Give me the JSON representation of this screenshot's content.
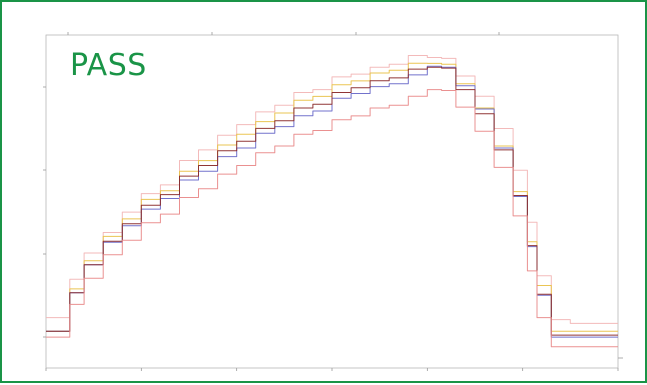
{
  "status": {
    "label": "PASS",
    "color": "#1a9447"
  },
  "chart_data": {
    "type": "line",
    "title": "",
    "xlabel": "",
    "ylabel": "",
    "xlim": [
      0,
      600
    ],
    "ylim": [
      0,
      300
    ],
    "grid": false,
    "x": [
      0,
      20,
      30,
      50,
      70,
      90,
      110,
      130,
      150,
      170,
      190,
      210,
      230,
      250,
      270,
      290,
      310,
      330,
      350,
      370,
      390,
      410,
      420,
      440,
      460,
      480,
      500,
      510,
      520,
      540,
      560,
      580,
      600
    ],
    "series": [
      {
        "color": "#f2b6b6",
        "values": [
          22,
          22,
          60,
          90,
          108,
          132,
          148,
          160,
          182,
          196,
          208,
          222,
          232,
          242,
          252,
          258,
          268,
          274,
          278,
          284,
          290,
          291,
          287,
          272,
          248,
          218,
          172,
          120,
          65,
          20,
          16,
          16,
          16
        ]
      },
      {
        "color": "#e9c24a",
        "values": [
          8,
          8,
          50,
          82,
          104,
          125,
          142,
          154,
          171,
          185,
          198,
          212,
          222,
          234,
          244,
          251,
          260,
          267,
          272,
          278,
          282,
          285,
          281,
          264,
          236,
          200,
          150,
          100,
          55,
          8,
          8,
          8,
          8
        ]
      },
      {
        "color": "#6a6ac9",
        "values": [
          8,
          8,
          46,
          78,
          98,
          118,
          132,
          146,
          162,
          174,
          186,
          198,
          210,
          220,
          228,
          236,
          246,
          254,
          258,
          264,
          270,
          282,
          278,
          262,
          235,
          198,
          145,
          95,
          45,
          2,
          2,
          2,
          2
        ]
      },
      {
        "color": "#8a2a2a",
        "values": [
          8,
          8,
          46,
          78,
          99,
          120,
          136,
          150,
          166,
          180,
          192,
          205,
          215,
          226,
          236,
          243,
          252,
          260,
          264,
          270,
          276,
          281,
          277,
          258,
          230,
          196,
          146,
          96,
          46,
          4,
          4,
          4,
          4
        ]
      },
      {
        "color": "#e98a8a",
        "values": [
          2,
          2,
          34,
          64,
          85,
          103,
          118,
          130,
          144,
          156,
          168,
          180,
          190,
          200,
          209,
          216,
          224,
          231,
          236,
          242,
          248,
          258,
          254,
          240,
          212,
          178,
          125,
          70,
          22,
          -8,
          -8,
          -8,
          -8
        ]
      }
    ],
    "x_ticks": [
      "",
      "",
      "",
      "",
      "",
      "",
      ""
    ],
    "top_ticks": [
      "",
      "",
      "",
      ""
    ]
  }
}
